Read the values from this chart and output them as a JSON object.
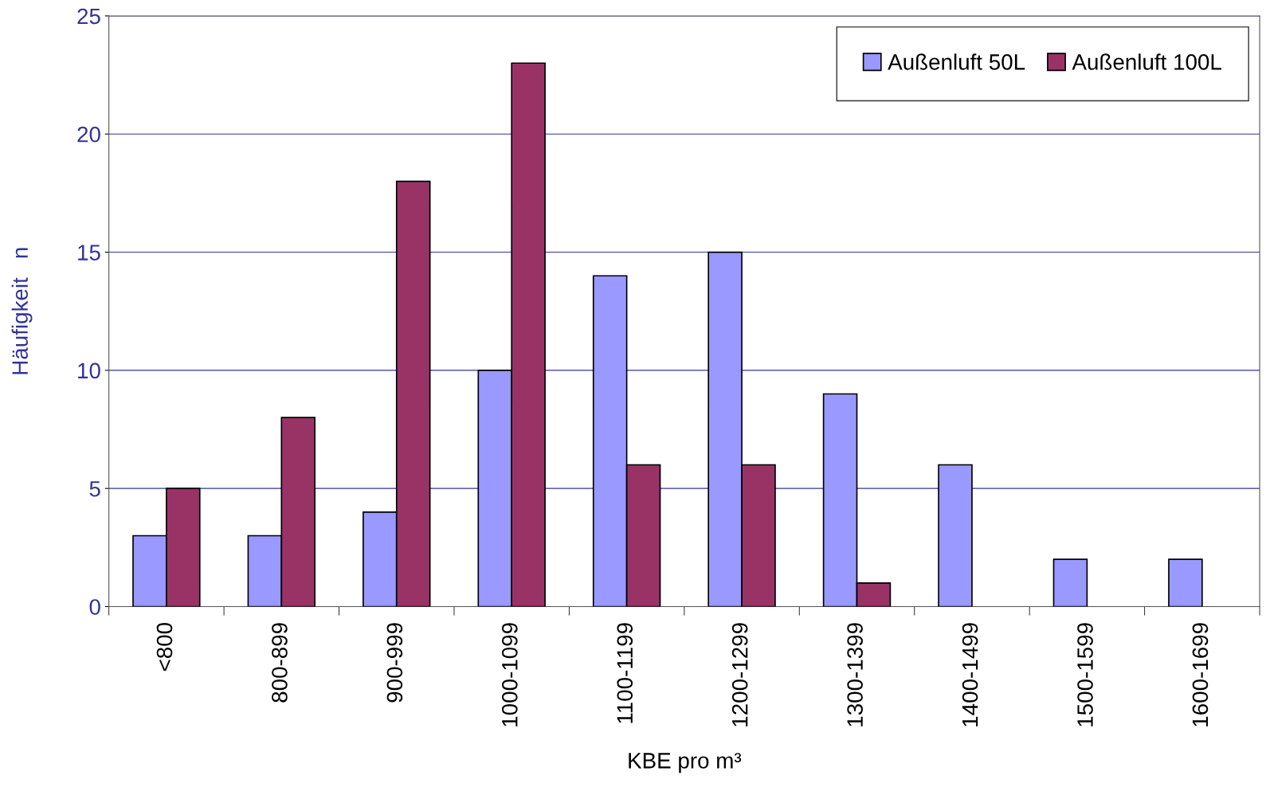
{
  "chart_data": {
    "type": "bar",
    "xlabel": "KBE pro m³",
    "ylabel": "Häufigkeit   n",
    "categories": [
      "<800",
      "800-899",
      "900-999",
      "1000-1099",
      "1100-1199",
      "1200-1299",
      "1300-1399",
      "1400-1499",
      "1500-1599",
      "1600-1699"
    ],
    "series": [
      {
        "name": "Außenluft 50L",
        "color": "#9999ff",
        "values": [
          3,
          3,
          4,
          10,
          14,
          15,
          9,
          6,
          2,
          2
        ]
      },
      {
        "name": "Außenluft 100L",
        "color": "#993366",
        "values": [
          5,
          8,
          18,
          23,
          6,
          6,
          1,
          null,
          null,
          null
        ]
      }
    ],
    "ylim": [
      0,
      25
    ],
    "yticks": [
      0,
      5,
      10,
      15,
      20,
      25
    ],
    "grid": "y",
    "legend": "top right"
  }
}
